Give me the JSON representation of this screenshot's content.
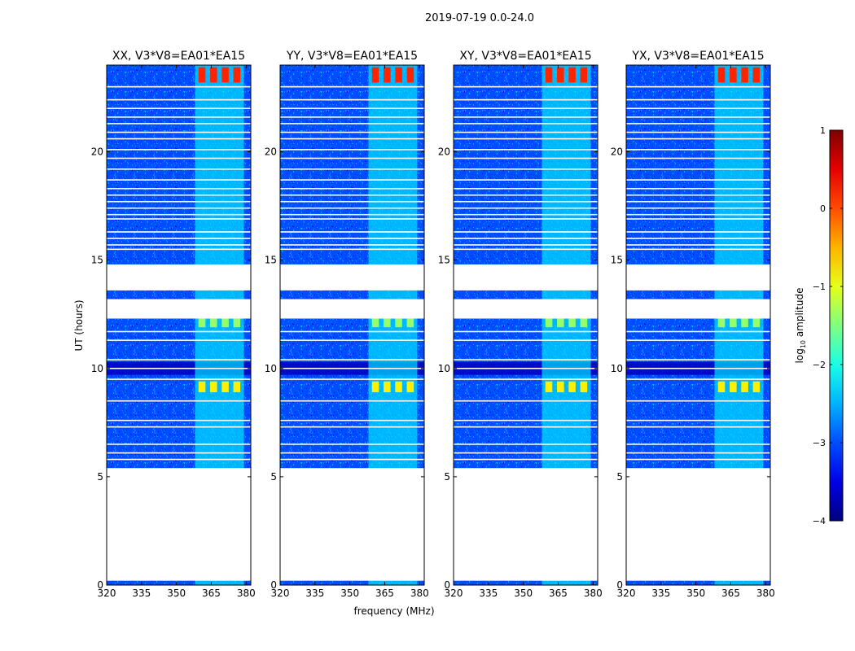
{
  "figure_title": "2019-07-19 0.0-24.0",
  "xlabel": "frequency (MHz)",
  "ylabel": "UT (hours)",
  "colorbar": {
    "label_prefix": "log",
    "label_sub": "10",
    "label_suffix": " amplitude",
    "min": -4,
    "max": 1,
    "ticks": [
      "1",
      "0",
      "−1",
      "−2",
      "−3",
      "−4"
    ]
  },
  "chart_data": {
    "type": "heatmap",
    "title": "2019-07-19 0.0-24.0",
    "xlabel": "frequency (MHz)",
    "ylabel": "UT (hours)",
    "xlim": [
      320,
      382
    ],
    "ylim": [
      0,
      24
    ],
    "xticks": [
      320,
      335,
      350,
      365,
      380
    ],
    "yticks": [
      0,
      5,
      10,
      15,
      20
    ],
    "colorscale": "jet",
    "value_label": "log10 amplitude",
    "value_range": [
      -4,
      1
    ],
    "background_level": -3,
    "active_band_mhz": [
      358,
      379
    ],
    "band_subchannels_mhz": [
      [
        359.5,
        362.5
      ],
      [
        364.5,
        367.5
      ],
      [
        369.5,
        372.5
      ],
      [
        374.5,
        377.5
      ]
    ],
    "gap_intervals_hours": [
      [
        0.2,
        5.4
      ],
      [
        12.3,
        13.2
      ],
      [
        13.6,
        14.8
      ]
    ],
    "strong_signal_hours": [
      [
        23.2,
        23.9
      ],
      [
        8.9,
        9.4
      ],
      [
        11.9,
        12.3
      ]
    ],
    "panels": [
      {
        "title": "XX, V3*V8=EA01*EA15",
        "band_mhz": [
          358,
          379
        ]
      },
      {
        "title": "YY, V3*V8=EA01*EA15",
        "band_mhz": [
          358,
          379
        ]
      },
      {
        "title": "XY, V3*V8=EA01*EA15",
        "band_mhz": [
          358,
          379
        ]
      },
      {
        "title": "YX, V3*V8=EA01*EA15",
        "band_mhz": [
          358,
          379
        ]
      }
    ]
  }
}
